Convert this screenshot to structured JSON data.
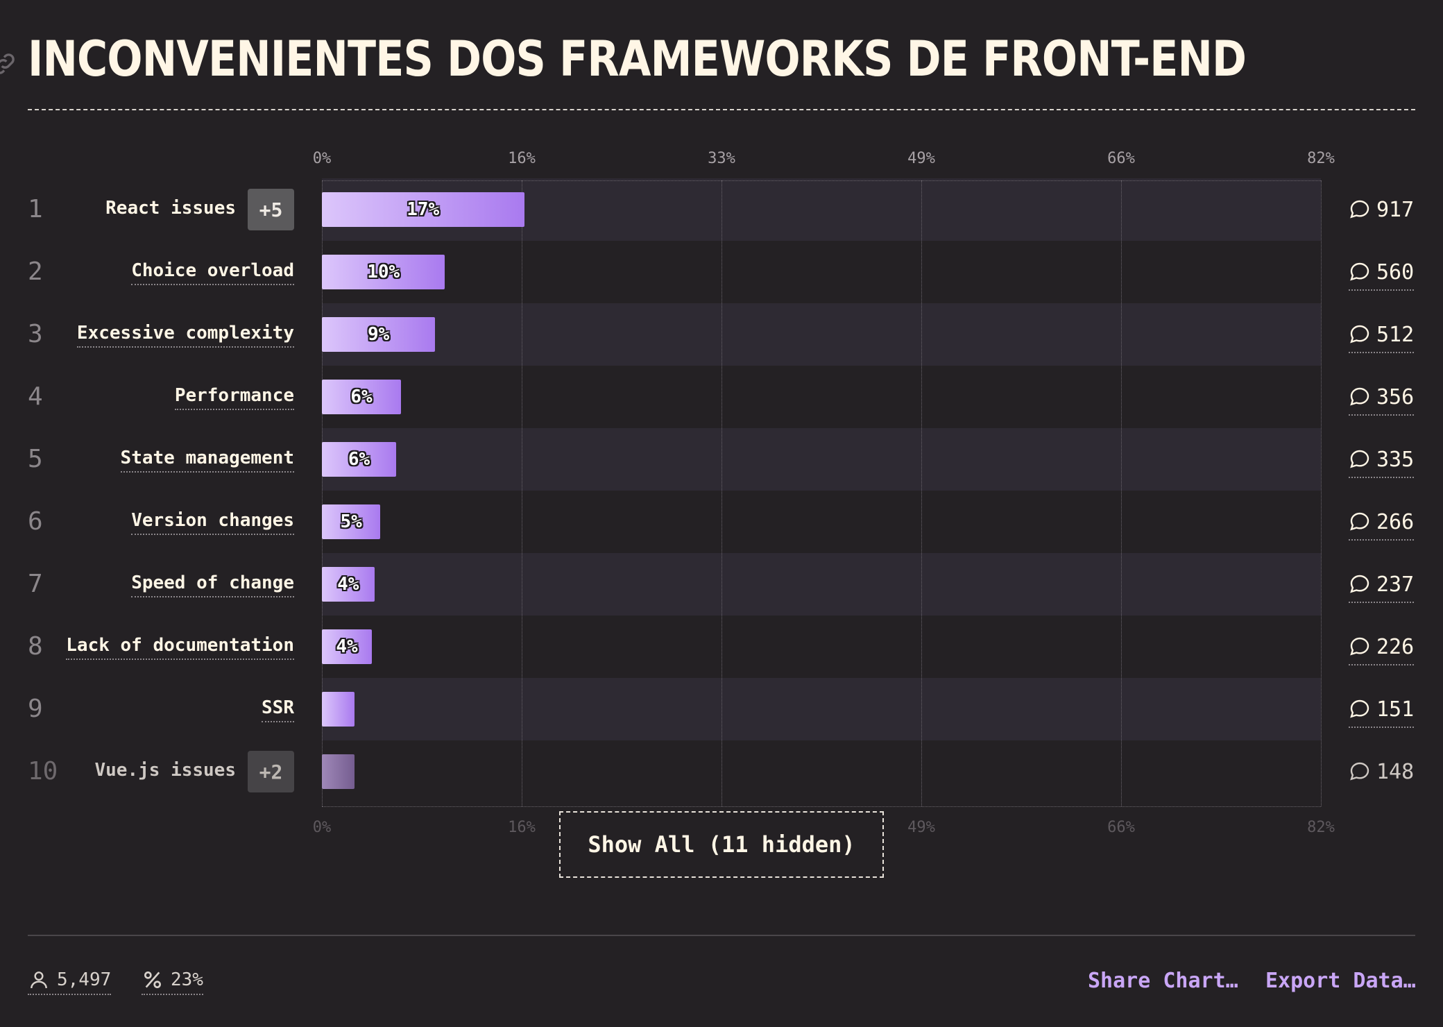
{
  "title": "INCONVENIENTES DOS FRAMEWORKS DE FRONT-END",
  "show_all_label": "Show All (11 hidden)",
  "footer": {
    "respondents": "5,497",
    "percentage": "23%",
    "share_label": "Share Chart…",
    "export_label": "Export Data…"
  },
  "chart_data": {
    "type": "bar",
    "orientation": "horizontal",
    "title": "INCONVENIENTES DOS FRAMEWORKS DE FRONT-END",
    "xlim": [
      0,
      82
    ],
    "x_ticks": [
      "0%",
      "16%",
      "33%",
      "49%",
      "66%",
      "82%"
    ],
    "tick_values": [
      0,
      16.4,
      32.8,
      49.2,
      65.6,
      82
    ],
    "categories": [
      "React issues",
      "Choice overload",
      "Excessive complexity",
      "Performance",
      "State management",
      "Version changes",
      "Speed of change",
      "Lack of documentation",
      "SSR",
      "Vue.js issues"
    ],
    "ranks": [
      "1",
      "2",
      "3",
      "4",
      "5",
      "6",
      "7",
      "8",
      "9",
      "10"
    ],
    "values": [
      16.6,
      10.1,
      9.3,
      6.5,
      6.1,
      4.8,
      4.3,
      4.1,
      2.7,
      2.7
    ],
    "value_labels": [
      "17%",
      "10%",
      "9%",
      "6%",
      "6%",
      "5%",
      "4%",
      "4%",
      "",
      ""
    ],
    "counts": [
      "917",
      "560",
      "512",
      "356",
      "335",
      "266",
      "237",
      "226",
      "151",
      "148"
    ],
    "badges": [
      "+5",
      "",
      "",
      "",
      "",
      "",
      "",
      "",
      "",
      "+2"
    ],
    "dimmed": [
      false,
      false,
      false,
      false,
      false,
      false,
      false,
      false,
      false,
      true
    ],
    "colors": {
      "bar_start": "#dcc6fb",
      "bar_end": "#a97aef",
      "band": "#2e2a33",
      "background": "#242124",
      "accent": "#c9a6f6"
    }
  }
}
